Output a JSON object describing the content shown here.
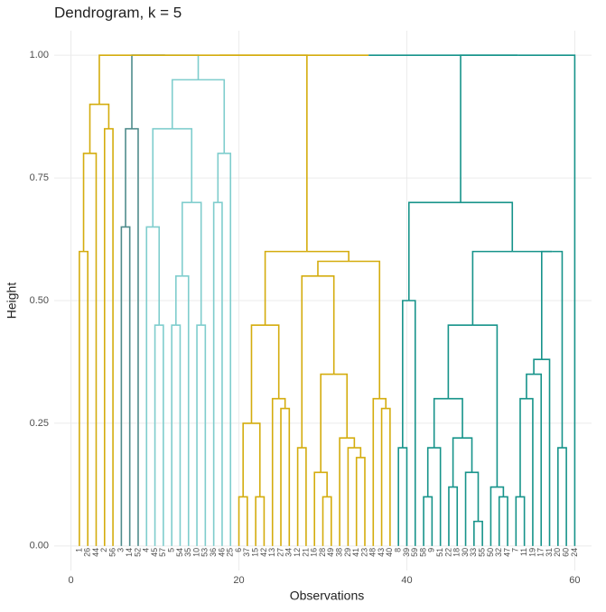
{
  "chart_data": {
    "type": "dendrogram",
    "title": "Dendrogram, k = 5",
    "xlabel": "Observations",
    "ylabel": "Height",
    "xlim": [
      -2,
      62
    ],
    "xticks": [
      0,
      20,
      40,
      60
    ],
    "ylim": [
      -0.05,
      1.05
    ],
    "yticks": [
      {
        "value": 0,
        "label": "0.00"
      },
      {
        "value": 0.25,
        "label": "0.25"
      },
      {
        "value": 0.5,
        "label": "0.50"
      },
      {
        "value": 0.75,
        "label": "0.75"
      },
      {
        "value": 1,
        "label": "1.00"
      }
    ],
    "grid": true,
    "leaves": [
      "1",
      "26",
      "44",
      "2",
      "56",
      "3",
      "14",
      "52",
      "4",
      "45",
      "57",
      "5",
      "54",
      "35",
      "10",
      "53",
      "36",
      "46",
      "25",
      "6",
      "37",
      "15",
      "42",
      "13",
      "27",
      "34",
      "12",
      "21",
      "16",
      "28",
      "49",
      "38",
      "29",
      "41",
      "23",
      "48",
      "43",
      "40",
      "8",
      "39",
      "59",
      "58",
      "9",
      "51",
      "22",
      "18",
      "30",
      "33",
      "55",
      "50",
      "32",
      "47",
      "7",
      "11",
      "19",
      "17",
      "31",
      "20",
      "60",
      "24"
    ],
    "cluster_colors": [
      "#D4AC0D",
      "#4F8C8C",
      "#7FCDCD",
      "#D4AC0D",
      "#16938A"
    ],
    "leaf_cluster": [
      0,
      0,
      0,
      0,
      0,
      1,
      1,
      1,
      2,
      2,
      2,
      2,
      2,
      2,
      2,
      2,
      2,
      2,
      2,
      3,
      3,
      3,
      3,
      3,
      3,
      3,
      3,
      3,
      3,
      3,
      3,
      3,
      3,
      3,
      3,
      3,
      3,
      3,
      4,
      4,
      4,
      4,
      4,
      4,
      4,
      4,
      4,
      4,
      4,
      4,
      4,
      4,
      4,
      4,
      4,
      4,
      4,
      4,
      4,
      4
    ],
    "merges": [
      [
        -1,
        -2,
        0.6
      ],
      [
        1,
        -3,
        0.8
      ],
      [
        -4,
        -5,
        0.85
      ],
      [
        2,
        3,
        0.9
      ],
      [
        -6,
        -7,
        0.65
      ],
      [
        5,
        -8,
        0.85
      ],
      [
        -10,
        -11,
        0.45
      ],
      [
        -9,
        7,
        0.65
      ],
      [
        -12,
        -13,
        0.45
      ],
      [
        9,
        -14,
        0.55
      ],
      [
        -15,
        -16,
        0.45
      ],
      [
        10,
        11,
        0.7
      ],
      [
        8,
        12,
        0.85
      ],
      [
        -17,
        -18,
        0.7
      ],
      [
        14,
        -19,
        0.8
      ],
      [
        13,
        15,
        0.95
      ],
      [
        -20,
        -21,
        0.1
      ],
      [
        -22,
        -23,
        0.1
      ],
      [
        17,
        18,
        0.25
      ],
      [
        -25,
        -26,
        0.28
      ],
      [
        -24,
        20,
        0.3
      ],
      [
        19,
        21,
        0.45
      ],
      [
        -27,
        -28,
        0.2
      ],
      [
        -30,
        -31,
        0.1
      ],
      [
        -29,
        24,
        0.15
      ],
      [
        -34,
        -35,
        0.18
      ],
      [
        -33,
        26,
        0.2
      ],
      [
        -32,
        27,
        0.22
      ],
      [
        25,
        28,
        0.35
      ],
      [
        23,
        29,
        0.55
      ],
      [
        -37,
        -38,
        0.28
      ],
      [
        -36,
        31,
        0.3
      ],
      [
        30,
        32,
        0.58
      ],
      [
        22,
        33,
        0.6
      ],
      [
        -39,
        -40,
        0.2
      ],
      [
        35,
        -41,
        0.5
      ],
      [
        -42,
        -43,
        0.1
      ],
      [
        37,
        -44,
        0.2
      ],
      [
        -45,
        -46,
        0.12
      ],
      [
        -48,
        -49,
        0.05
      ],
      [
        -47,
        40,
        0.15
      ],
      [
        39,
        41,
        0.22
      ],
      [
        38,
        42,
        0.3
      ],
      [
        -51,
        -52,
        0.1
      ],
      [
        -50,
        44,
        0.12
      ],
      [
        43,
        45,
        0.45
      ],
      [
        -53,
        -54,
        0.1
      ],
      [
        47,
        -55,
        0.3
      ],
      [
        48,
        -56,
        0.35
      ],
      [
        49,
        -57,
        0.38
      ],
      [
        -58,
        -59,
        0.2
      ],
      [
        50,
        51,
        0.6
      ],
      [
        46,
        52,
        0.6
      ],
      [
        36,
        53,
        0.7
      ],
      [
        54,
        -60,
        1.0
      ],
      [
        6,
        16,
        1.0
      ],
      [
        4,
        56,
        1.0
      ],
      [
        57,
        34,
        1.0
      ],
      [
        58,
        55,
        1.0
      ]
    ]
  }
}
